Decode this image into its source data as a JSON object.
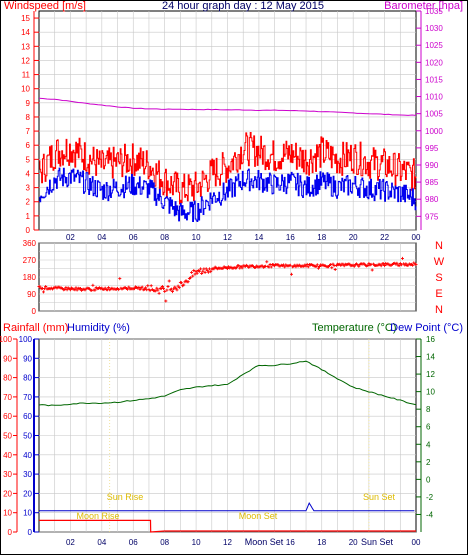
{
  "colors": {
    "wind": "#ff0000",
    "gust_dark": "#e00000",
    "wind_avg": "#0000ee",
    "barometer": "#cc00cc",
    "direction": "#ff0000",
    "rain": "#ff0000",
    "humidity": "#0000cc",
    "temperature": "#006600",
    "dewpoint": "#0000cc",
    "title": "#000066",
    "sun": "#ddbb00",
    "moon": "#ddbb00",
    "grid": "#c8c8c8",
    "frame": "#000000"
  },
  "chart_data": [
    {
      "type": "line",
      "title": "24 hour graph day : 12 May 2015",
      "ylabel": "Windspeed [m/s]",
      "ylabel_right": "Barometer [hpa]",
      "ylim": [
        0,
        15.5
      ],
      "y_ticks": [
        0,
        1,
        2,
        3,
        4,
        5,
        6,
        7,
        8,
        9,
        10,
        11,
        12,
        13,
        14,
        15
      ],
      "y2lim": [
        971,
        1035
      ],
      "y2_ticks": [
        975,
        980,
        985,
        990,
        995,
        1000,
        1005,
        1010,
        1015,
        1020,
        1025,
        1030,
        1035
      ],
      "x_ticks": [
        "02",
        "04",
        "06",
        "08",
        "10",
        "12",
        "14",
        "16",
        "18",
        "20",
        "22",
        "00"
      ],
      "grid": true,
      "series": [
        {
          "name": "Barometer",
          "axis": "right",
          "x": [
            0,
            1,
            2,
            3,
            4,
            5,
            6,
            7,
            8,
            9,
            10,
            11,
            12,
            13,
            14,
            15,
            16,
            17,
            18,
            19,
            20,
            21,
            22,
            23,
            24
          ],
          "values": [
            1009.5,
            1009.2,
            1008.6,
            1008.0,
            1007.5,
            1007.0,
            1006.6,
            1006.4,
            1006.3,
            1006.3,
            1006.2,
            1006.2,
            1006.1,
            1006.1,
            1006.0,
            1006.0,
            1005.9,
            1005.8,
            1005.6,
            1005.4,
            1005.2,
            1005.0,
            1004.8,
            1004.6,
            1004.5
          ]
        },
        {
          "name": "Windspeed gust",
          "axis": "left",
          "x": [
            0,
            1,
            2,
            3,
            4,
            5,
            6,
            7,
            8,
            9,
            10,
            11,
            12,
            13,
            14,
            15,
            16,
            17,
            18,
            19,
            20,
            21,
            22,
            23,
            24
          ],
          "values": [
            4.0,
            5.5,
            5.8,
            5.2,
            4.5,
            4.8,
            5.0,
            4.6,
            3.5,
            2.8,
            3.0,
            4.0,
            4.5,
            5.8,
            5.6,
            5.2,
            5.4,
            5.0,
            5.5,
            5.0,
            5.2,
            4.8,
            4.6,
            4.2,
            3.8
          ]
        },
        {
          "name": "Windspeed",
          "axis": "left",
          "x": [
            0,
            1,
            2,
            3,
            4,
            5,
            6,
            7,
            8,
            9,
            10,
            11,
            12,
            13,
            14,
            15,
            16,
            17,
            18,
            19,
            20,
            21,
            22,
            23,
            24
          ],
          "values": [
            2.5,
            3.6,
            3.8,
            3.3,
            2.8,
            3.0,
            3.2,
            2.9,
            2.0,
            1.2,
            1.3,
            2.3,
            2.7,
            3.6,
            3.5,
            3.2,
            3.4,
            3.0,
            3.4,
            3.0,
            3.2,
            2.9,
            2.8,
            2.6,
            2.2
          ]
        }
      ]
    },
    {
      "type": "scatter",
      "ylabel": "Wind direction",
      "ylim": [
        0,
        360
      ],
      "y_ticks": [
        0,
        45,
        90,
        135,
        180,
        225,
        270,
        315,
        360
      ],
      "compass": [
        "N",
        "W",
        "S",
        "E",
        "N"
      ],
      "grid": true,
      "x": [
        0,
        1,
        2,
        3,
        4,
        5,
        6,
        7,
        8,
        9,
        10,
        11,
        12,
        13,
        14,
        15,
        16,
        17,
        18,
        19,
        20,
        21,
        22,
        23,
        24
      ],
      "values": [
        125,
        120,
        118,
        115,
        118,
        120,
        122,
        118,
        110,
        135,
        205,
        225,
        230,
        235,
        238,
        240,
        238,
        240,
        240,
        242,
        243,
        245,
        246,
        247,
        248
      ]
    },
    {
      "type": "line",
      "ylabel": "Rainfall (mm)",
      "ylabel_humidity": "Humidity (%)",
      "ylabel_right": "Temperature (°C)",
      "ylabel_right2": "Dew Point (°C)",
      "ylim": [
        0,
        100
      ],
      "y_ticks": [
        0,
        10,
        20,
        30,
        40,
        50,
        60,
        70,
        80,
        90,
        100
      ],
      "y2lim": [
        -6,
        16
      ],
      "y2_ticks": [
        -4,
        -2,
        0,
        2,
        4,
        6,
        8,
        10,
        12,
        14,
        16
      ],
      "x_ticks": [
        "02",
        "04",
        "06",
        "08",
        "10",
        "12",
        "14",
        "16",
        "18",
        "20",
        "22",
        "00"
      ],
      "grid": true,
      "series": [
        {
          "name": "Temperature",
          "axis": "right",
          "x": [
            0,
            1,
            2,
            3,
            4,
            5,
            6,
            7,
            8,
            9,
            10,
            11,
            12,
            13,
            14,
            15,
            16,
            17,
            18,
            19,
            20,
            21,
            22,
            23,
            24
          ],
          "values": [
            8.5,
            8.4,
            8.6,
            8.7,
            8.7,
            8.8,
            9.0,
            9.2,
            9.5,
            10.2,
            10.5,
            10.7,
            10.8,
            12.0,
            13.0,
            13.0,
            13.2,
            13.5,
            12.5,
            11.5,
            10.5,
            10.0,
            9.5,
            9.0,
            8.5
          ]
        },
        {
          "name": "Rainfall",
          "axis": "left",
          "x": [
            0,
            7.1,
            7.11,
            8,
            24
          ],
          "values": [
            6,
            6,
            0,
            0.5,
            0.5
          ]
        },
        {
          "name": "Humidity",
          "axis": "left",
          "x": [
            0,
            17.0,
            17.2,
            17.5,
            24
          ],
          "values": [
            11,
            11,
            15,
            11,
            11
          ]
        }
      ],
      "annotations": [
        {
          "text": "Sun Rise",
          "hour": 4.5
        },
        {
          "text": "Moon Rise",
          "hour": 3.2
        },
        {
          "text": "Moon Set",
          "hour": 12.5
        },
        {
          "text": "Sun Set",
          "hour": 21.0
        }
      ],
      "bottom_labels": [
        {
          "text": "Moon Set",
          "hour": 14.5
        },
        {
          "text": "Sun Set",
          "hour": 21.0
        }
      ]
    }
  ]
}
